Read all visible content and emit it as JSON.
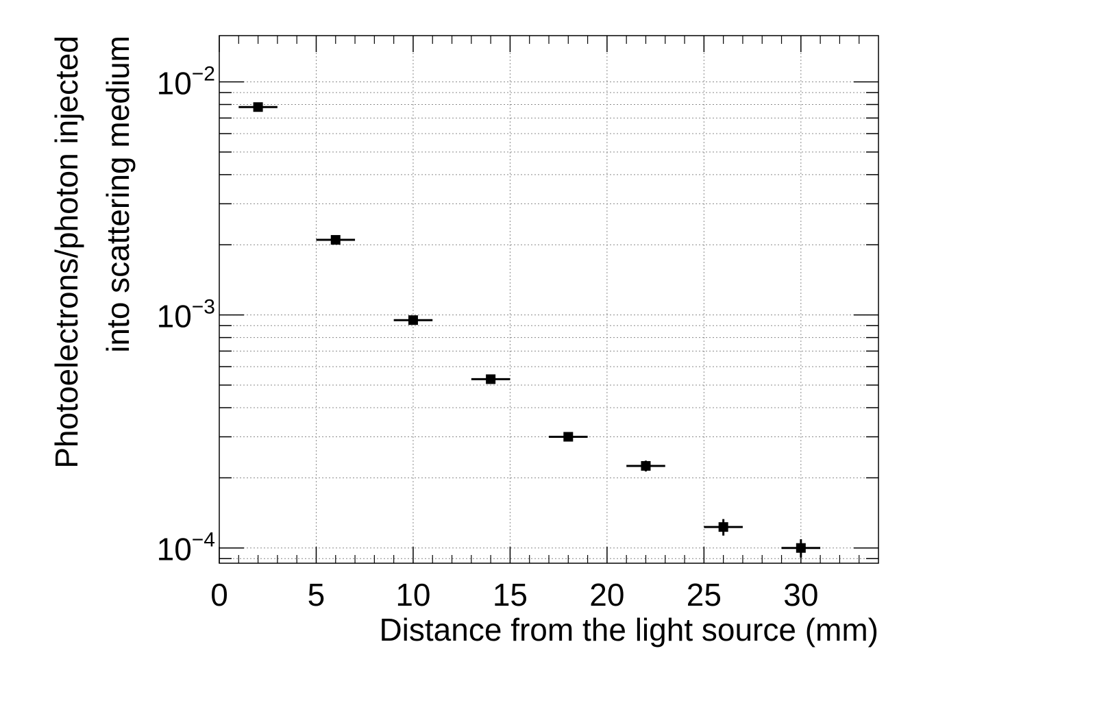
{
  "chart_data": {
    "type": "scatter",
    "xlabel": "Distance from the light source (mm)",
    "ylabel_lines": [
      "Photoelectrons/photon injected",
      "into scattering medium"
    ],
    "xlim": [
      0,
      34
    ],
    "ylim": [
      8.6e-05,
      0.0158
    ],
    "y_scale": "log",
    "grid": true,
    "x_ticks": [
      0,
      5,
      10,
      15,
      20,
      25,
      30
    ],
    "x_tick_labels": [
      "0",
      "5",
      "10",
      "15",
      "20",
      "25",
      "30"
    ],
    "y_ticks": [
      0.0001,
      0.001,
      0.01
    ],
    "y_tick_labels": [
      {
        "base": "10",
        "exp": "−4"
      },
      {
        "base": "10",
        "exp": "−3"
      },
      {
        "base": "10",
        "exp": "−2"
      }
    ],
    "points": [
      {
        "x": 2,
        "y": 0.0078,
        "xerr": 1,
        "yerr": 0.0002
      },
      {
        "x": 6,
        "y": 0.0021,
        "xerr": 1,
        "yerr": 6e-05
      },
      {
        "x": 10,
        "y": 0.00095,
        "xerr": 1,
        "yerr": 2e-05
      },
      {
        "x": 14,
        "y": 0.00053,
        "xerr": 1,
        "yerr": 1.2e-05
      },
      {
        "x": 18,
        "y": 0.0003,
        "xerr": 1,
        "yerr": 9e-06
      },
      {
        "x": 22,
        "y": 0.000225,
        "xerr": 1,
        "yerr": 1.2e-05
      },
      {
        "x": 26,
        "y": 0.000123,
        "xerr": 1,
        "yerr": 1e-05
      },
      {
        "x": 30,
        "y": 0.0001,
        "xerr": 1,
        "yerr": 9e-06
      }
    ]
  }
}
